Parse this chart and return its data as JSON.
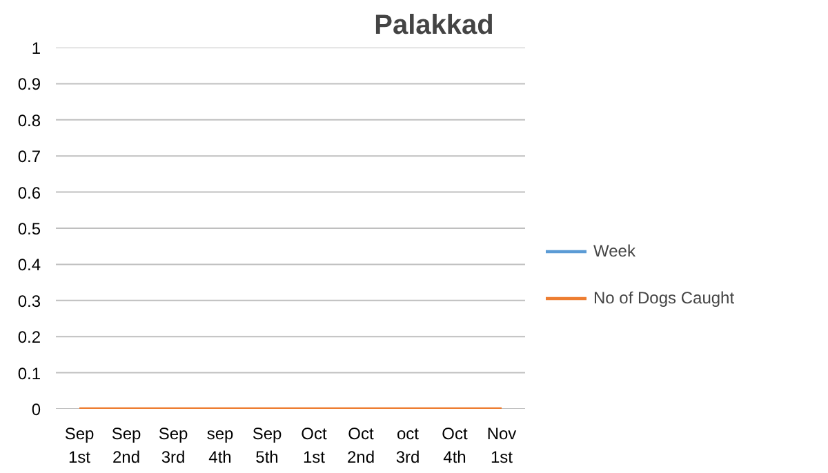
{
  "chart_data": {
    "type": "line",
    "title": "Palakkad",
    "categories": [
      "Sep 1st",
      "Sep 2nd",
      "Sep 3rd",
      "sep 4th",
      "Sep 5th",
      "Oct 1st",
      "Oct 2nd",
      "oct 3rd",
      "Oct 4th",
      "Nov 1st"
    ],
    "series": [
      {
        "name": "Week",
        "color": "#5b9bd5",
        "values": [
          null,
          null,
          null,
          null,
          null,
          null,
          null,
          null,
          null,
          null
        ]
      },
      {
        "name": "No of Dogs Caught",
        "color": "#ed7d31",
        "values": [
          0,
          0,
          0,
          0,
          0,
          0,
          0,
          0,
          0,
          0
        ]
      }
    ],
    "ylim": [
      0,
      1
    ],
    "yticks": [
      0,
      0.1,
      0.2,
      0.3,
      0.4,
      0.5,
      0.6,
      0.7,
      0.8,
      0.9,
      1
    ],
    "grid": "y",
    "legend": "right",
    "marker": "none",
    "line_style": "solid"
  }
}
